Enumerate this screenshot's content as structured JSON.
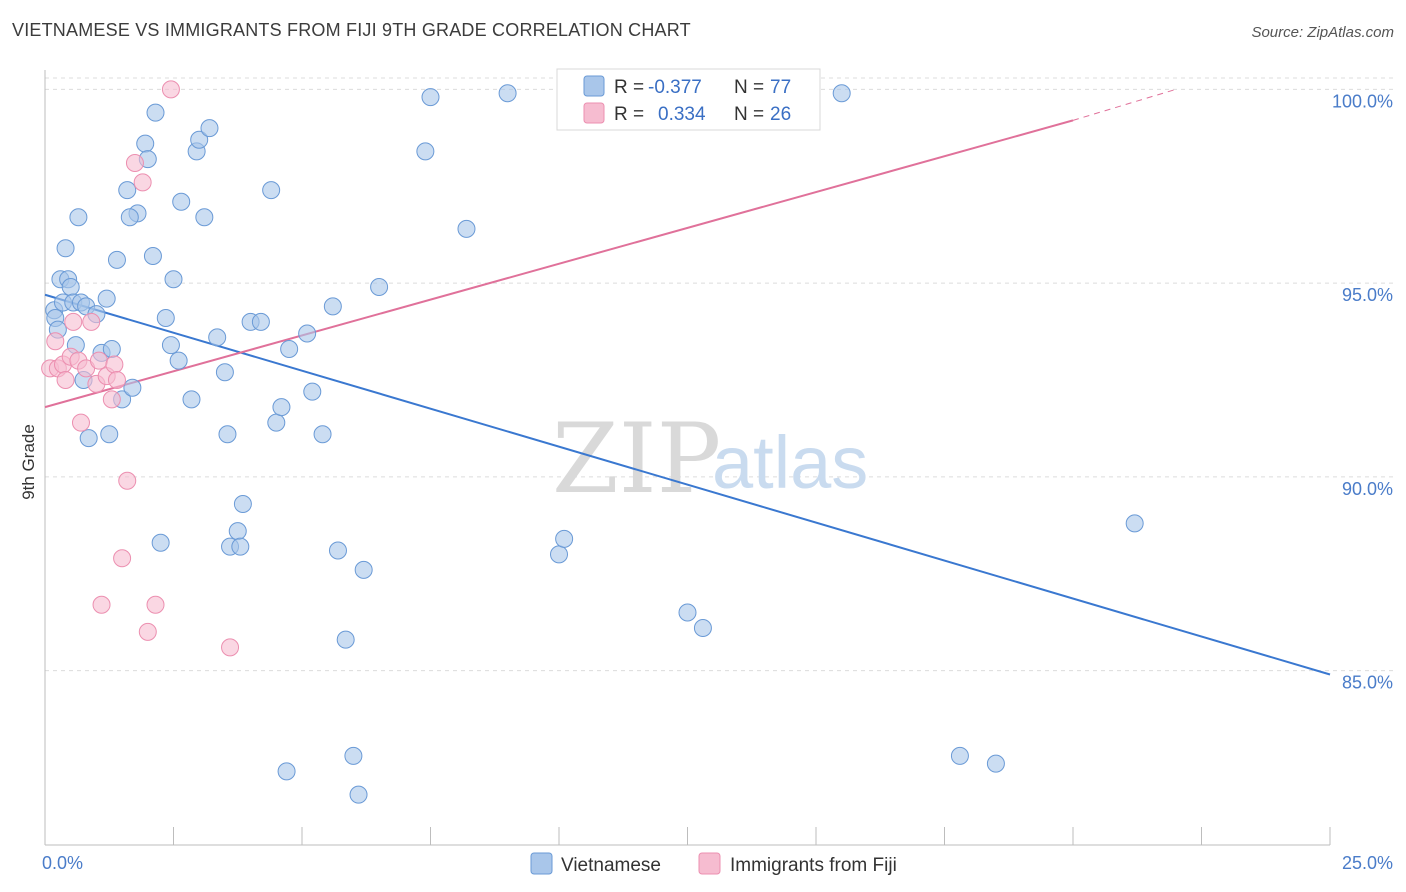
{
  "title": "VIETNAMESE VS IMMIGRANTS FROM FIJI 9TH GRADE CORRELATION CHART",
  "source": "Source: ZipAtlas.com",
  "watermark": {
    "zip": "ZIP",
    "atlas": "atlas"
  },
  "colors": {
    "blue_fill": "#a9c6ea",
    "blue_stroke": "#6a9ad6",
    "blue_line": "#3a78d0",
    "pink_fill": "#f6bcd0",
    "pink_stroke": "#ec8fb0",
    "pink_line": "#e0719a",
    "grid": "#dcdcdc",
    "tick_text": "#4a7cc9"
  },
  "legend": {
    "rows": [
      {
        "r_label": "R =",
        "r_value": "-0.377",
        "n_label": "N =",
        "n_value": "77"
      },
      {
        "r_label": "R =",
        "r_value": "0.334",
        "n_label": "N =",
        "n_value": "26"
      }
    ]
  },
  "chart_data": {
    "type": "scatter",
    "xlabel": "",
    "ylabel": "9th Grade",
    "xlim": [
      0,
      25
    ],
    "ylim": [
      80.5,
      100.5
    ],
    "x_tick_labels": [
      "0.0%",
      "25.0%"
    ],
    "y_ticks": [
      85,
      90,
      95,
      100
    ],
    "y_tick_labels": [
      "85.0%",
      "90.0%",
      "95.0%",
      "100.0%"
    ],
    "grid": true,
    "legend_position": "bottom",
    "series": [
      {
        "name": "Vietnamese",
        "r": -0.377,
        "n": 77,
        "trend": {
          "x0": 0.0,
          "y0": 94.7,
          "x1": 25.0,
          "y1": 84.9
        },
        "points": [
          [
            0.18,
            94.3
          ],
          [
            0.2,
            94.1
          ],
          [
            0.25,
            93.8
          ],
          [
            0.3,
            95.1
          ],
          [
            0.35,
            94.5
          ],
          [
            0.4,
            95.9
          ],
          [
            0.45,
            95.1
          ],
          [
            0.5,
            94.9
          ],
          [
            0.55,
            94.5
          ],
          [
            0.6,
            93.4
          ],
          [
            0.7,
            94.5
          ],
          [
            0.75,
            92.5
          ],
          [
            0.8,
            94.4
          ],
          [
            1.0,
            94.2
          ],
          [
            1.1,
            93.2
          ],
          [
            1.2,
            94.6
          ],
          [
            1.3,
            93.3
          ],
          [
            1.4,
            95.6
          ],
          [
            1.5,
            92.0
          ],
          [
            1.6,
            97.4
          ],
          [
            1.7,
            92.3
          ],
          [
            1.8,
            96.8
          ],
          [
            1.95,
            98.6
          ],
          [
            2.0,
            98.2
          ],
          [
            2.1,
            95.7
          ],
          [
            2.15,
            99.4
          ],
          [
            2.25,
            88.3
          ],
          [
            2.35,
            94.1
          ],
          [
            2.45,
            93.4
          ],
          [
            2.5,
            95.1
          ],
          [
            2.6,
            93.0
          ],
          [
            2.65,
            97.1
          ],
          [
            2.85,
            92.0
          ],
          [
            2.95,
            98.4
          ],
          [
            3.0,
            98.7
          ],
          [
            3.1,
            96.7
          ],
          [
            3.2,
            99.0
          ],
          [
            3.35,
            93.6
          ],
          [
            3.5,
            92.7
          ],
          [
            3.6,
            88.2
          ],
          [
            3.75,
            88.6
          ],
          [
            3.8,
            88.2
          ],
          [
            3.85,
            89.3
          ],
          [
            4.0,
            94.0
          ],
          [
            4.2,
            94.0
          ],
          [
            4.4,
            97.4
          ],
          [
            4.5,
            91.4
          ],
          [
            4.6,
            91.8
          ],
          [
            4.75,
            93.3
          ],
          [
            5.1,
            93.7
          ],
          [
            5.2,
            92.2
          ],
          [
            5.4,
            91.1
          ],
          [
            5.6,
            94.4
          ],
          [
            5.7,
            88.1
          ],
          [
            5.85,
            85.8
          ],
          [
            6.0,
            82.8
          ],
          [
            6.2,
            87.6
          ],
          [
            6.5,
            94.9
          ],
          [
            6.1,
            81.8
          ],
          [
            4.7,
            82.4
          ],
          [
            7.4,
            98.4
          ],
          [
            7.5,
            99.8
          ],
          [
            8.2,
            96.4
          ],
          [
            9.0,
            99.9
          ],
          [
            10.0,
            88.0
          ],
          [
            10.1,
            88.4
          ],
          [
            12.5,
            86.5
          ],
          [
            12.8,
            86.1
          ],
          [
            15.5,
            99.9
          ],
          [
            17.8,
            82.8
          ],
          [
            18.5,
            82.6
          ],
          [
            21.2,
            88.8
          ],
          [
            0.85,
            91.0
          ],
          [
            1.25,
            91.1
          ],
          [
            3.55,
            91.1
          ],
          [
            0.65,
            96.7
          ],
          [
            1.65,
            96.7
          ]
        ]
      },
      {
        "name": "Immigrants from Fiji",
        "r": 0.334,
        "n": 26,
        "trend": {
          "x0": 0.0,
          "y0": 91.8,
          "x1": 20.0,
          "y1": 99.2,
          "dash_x1": 22.0,
          "dash_y1": 100.0
        },
        "points": [
          [
            0.1,
            92.8
          ],
          [
            0.2,
            93.5
          ],
          [
            0.25,
            92.8
          ],
          [
            0.35,
            92.9
          ],
          [
            0.4,
            92.5
          ],
          [
            0.5,
            93.1
          ],
          [
            0.55,
            94.0
          ],
          [
            0.65,
            93.0
          ],
          [
            0.7,
            91.4
          ],
          [
            0.8,
            92.8
          ],
          [
            0.9,
            94.0
          ],
          [
            1.0,
            92.4
          ],
          [
            1.05,
            93.0
          ],
          [
            1.1,
            86.7
          ],
          [
            1.2,
            92.6
          ],
          [
            1.3,
            92.0
          ],
          [
            1.35,
            92.9
          ],
          [
            1.4,
            92.5
          ],
          [
            1.5,
            87.9
          ],
          [
            1.6,
            89.9
          ],
          [
            1.75,
            98.1
          ],
          [
            1.9,
            97.6
          ],
          [
            2.0,
            86.0
          ],
          [
            2.15,
            86.7
          ],
          [
            2.45,
            100.0
          ],
          [
            3.6,
            85.6
          ]
        ]
      }
    ]
  }
}
